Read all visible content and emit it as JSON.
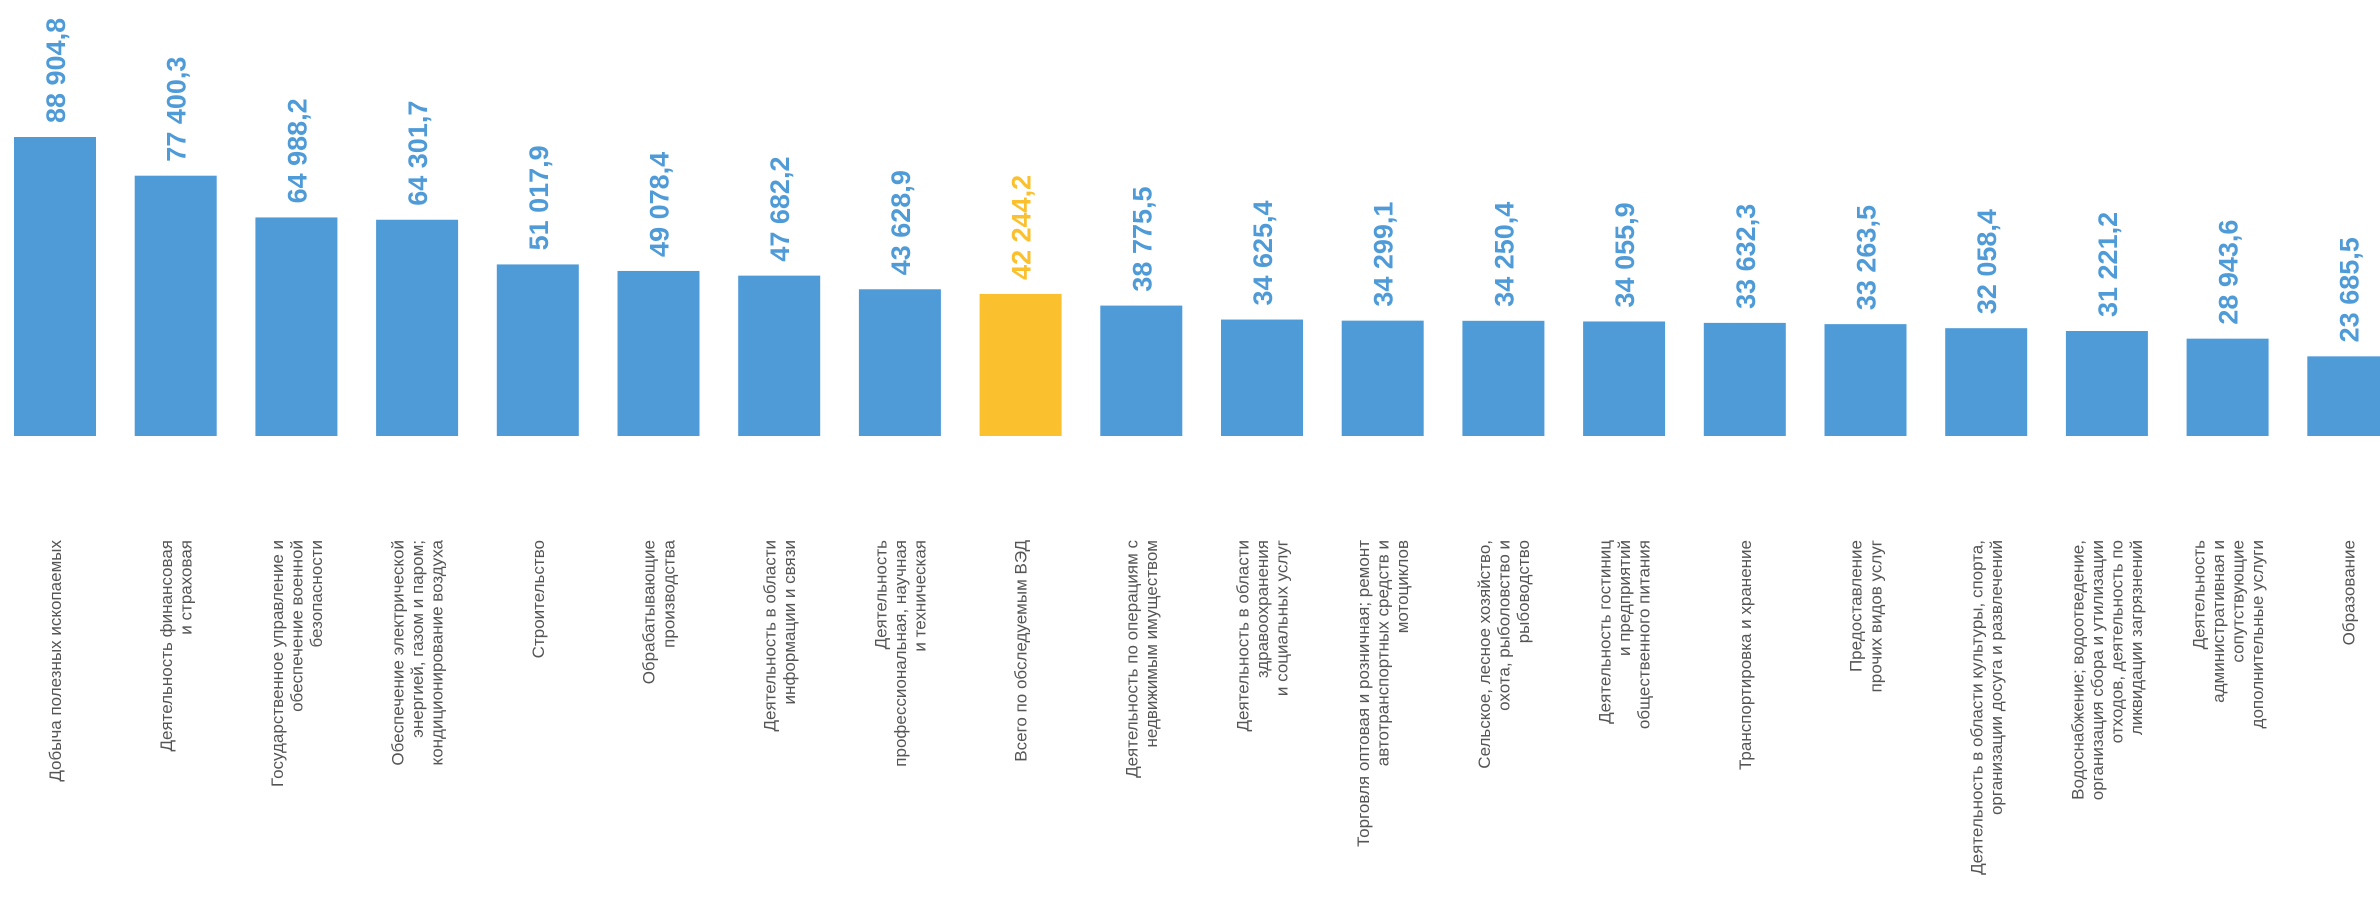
{
  "chart_data": {
    "type": "bar",
    "categories": [
      "Добыча полезных ископаемых",
      "Деятельность финансовая\nи страховая",
      "Государственное управление и\nобеспечение военной\nбезопасности",
      "Обеспечение электрической\nэнергией, газом и паром;\nкондиционирование воздуха",
      "Строительство",
      "Обрабатывающие\nпроизводства",
      "Деятельность в области\nинформации и связи",
      "Деятельность\nпрофессиональная, научная\nи техническая",
      "Всего по обследуемым ВЭД",
      "Деятельность по операциям с\nнедвижимым имуществом",
      "Деятельность в области\nздравоохранения\nи социальных услуг",
      "Торговля оптовая и розничная; ремонт\nавтотранспортных средств и\nмотоциклов",
      "Сельское, лесное хозяйство,\nохота, рыболовство и\nрыбоводство",
      "Деятельность гостиниц\nи предприятий\nобщественного питания",
      "Транспортировка и хранение",
      "Предоставление\nпрочих видов услуг",
      "Деятельность в области культуры, спорта,\nорганизации досуга и развлечений",
      "Водоснабжение; водоотведение,\nорганизация сбора и утилизации\nотходов, деятельность по\nликвидации загрязнений",
      "Деятельность\nадминистративная и\nсопутствующие\nдополнительные услуги",
      "Образование"
    ],
    "values": [
      88904.8,
      77400.3,
      64988.2,
      64301.7,
      51017.9,
      49078.4,
      47682.2,
      43628.9,
      42244.2,
      38775.5,
      34625.4,
      34299.1,
      34250.4,
      34055.9,
      33632.3,
      33263.5,
      32058.4,
      31221.2,
      28943.6,
      23685.5
    ],
    "value_labels": [
      "88 904,8",
      "77 400,3",
      "64 988,2",
      "64 301,7",
      "51 017,9",
      "49 078,4",
      "47 682,2",
      "43 628,9",
      "42 244,2",
      "38 775,5",
      "34 625,4",
      "34 299,1",
      "34 250,4",
      "34 055,9",
      "33 632,3",
      "33 263,5",
      "32 058,4",
      "31 221,2",
      "28 943,6",
      "23 685,5"
    ],
    "colors": [
      "#4f9bd8",
      "#4f9bd8",
      "#4f9bd8",
      "#4f9bd8",
      "#4f9bd8",
      "#4f9bd8",
      "#4f9bd8",
      "#4f9bd8",
      "#fbc02d",
      "#4f9bd8",
      "#4f9bd8",
      "#4f9bd8",
      "#4f9bd8",
      "#4f9bd8",
      "#4f9bd8",
      "#4f9bd8",
      "#4f9bd8",
      "#4f9bd8",
      "#4f9bd8",
      "#4f9bd8"
    ]
  }
}
